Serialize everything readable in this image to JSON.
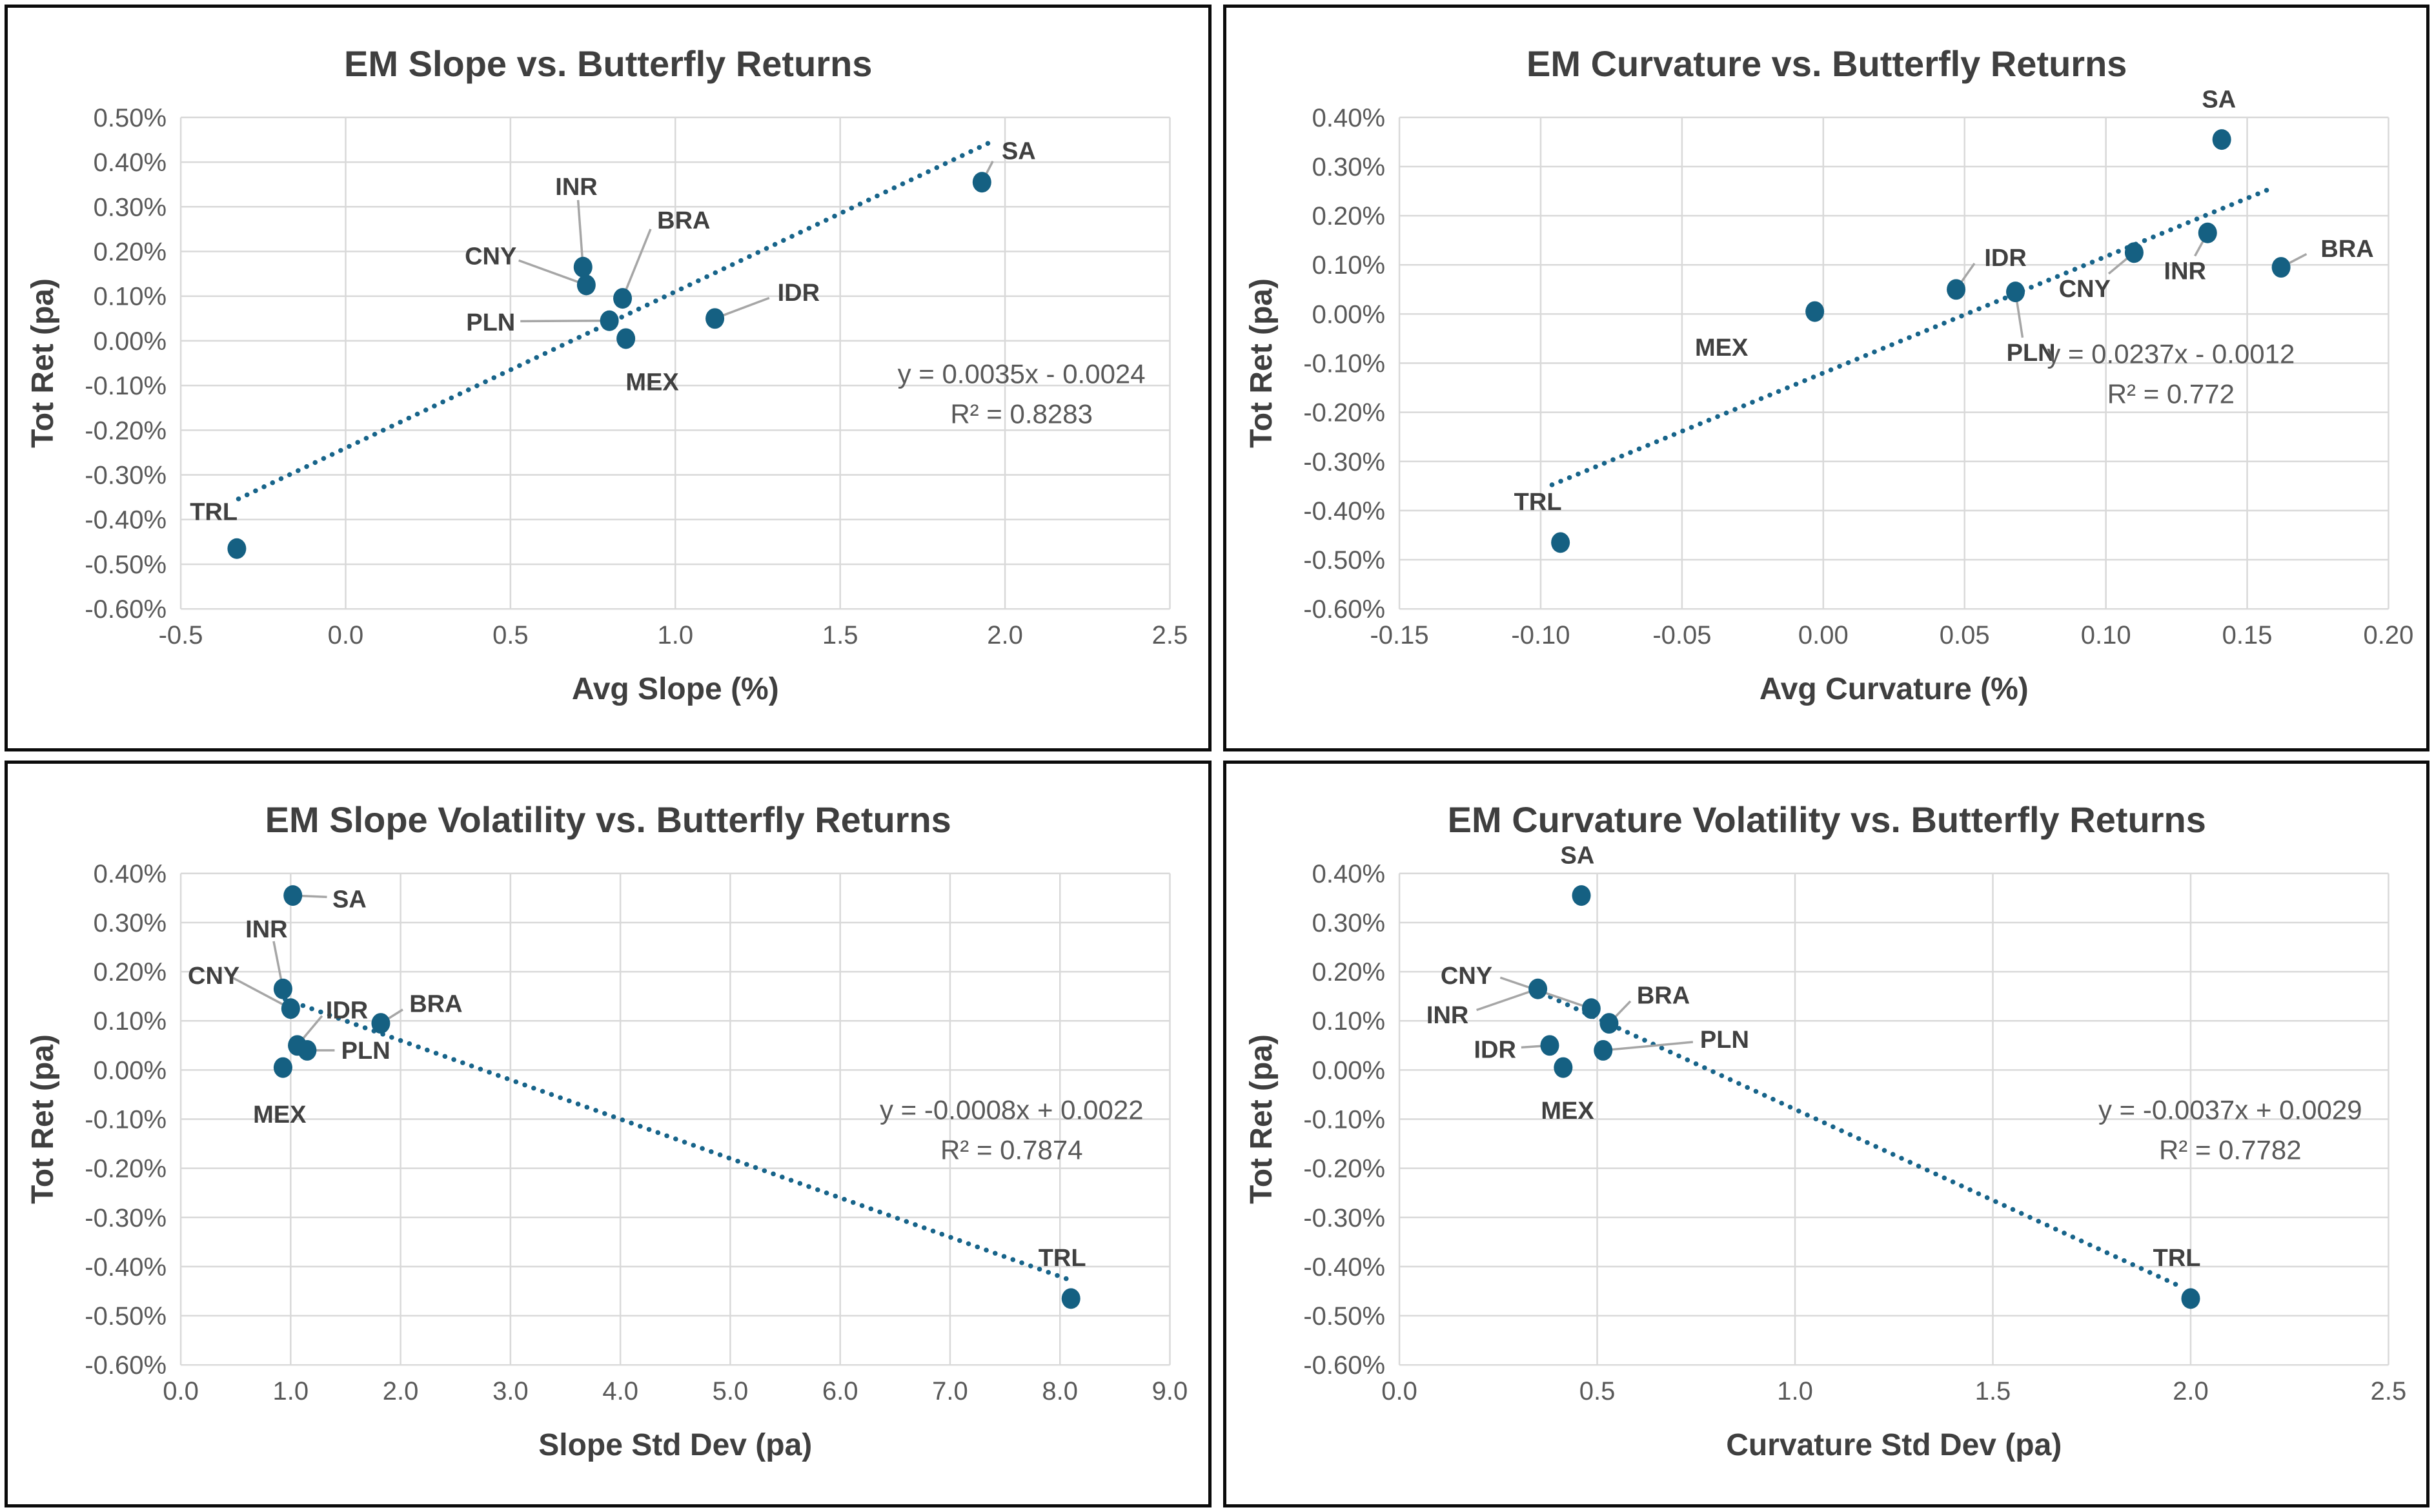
{
  "page": {
    "background": "#ffffff",
    "panel_border_color": "#0b0b0b"
  },
  "styles": {
    "point_color": "#156082",
    "trend_color": "#17648a",
    "grid_color": "#d9d9d9",
    "leader_color": "#a6a6a6",
    "title_color": "#3f3f3f",
    "tick_color": "#595959",
    "label_color": "#404040",
    "eq_color": "#595959"
  },
  "chart_data": [
    {
      "type": "scatter",
      "title": "EM Slope vs. Butterfly Returns",
      "xlabel": "Avg Slope (%)",
      "ylabel": "Tot Ret (pa)",
      "xlim": [
        -0.5,
        2.5
      ],
      "ylim": [
        -0.006,
        0.005
      ],
      "grid": true,
      "x_ticks": [
        {
          "v": -0.5,
          "t": "-0.5"
        },
        {
          "v": 0.0,
          "t": "0.0"
        },
        {
          "v": 0.5,
          "t": "0.5"
        },
        {
          "v": 1.0,
          "t": "1.0"
        },
        {
          "v": 1.5,
          "t": "1.5"
        },
        {
          "v": 2.0,
          "t": "2.0"
        },
        {
          "v": 2.5,
          "t": "2.5"
        }
      ],
      "y_ticks": [
        {
          "v": 0.005,
          "t": "0.50%"
        },
        {
          "v": 0.004,
          "t": "0.40%"
        },
        {
          "v": 0.003,
          "t": "0.30%"
        },
        {
          "v": 0.002,
          "t": "0.20%"
        },
        {
          "v": 0.001,
          "t": "0.10%"
        },
        {
          "v": 0.0,
          "t": "0.00%"
        },
        {
          "v": -0.001,
          "t": "-0.10%"
        },
        {
          "v": -0.002,
          "t": "-0.20%"
        },
        {
          "v": -0.003,
          "t": "-0.30%"
        },
        {
          "v": -0.004,
          "t": "-0.40%"
        },
        {
          "v": -0.005,
          "t": "-0.50%"
        },
        {
          "v": -0.006,
          "t": "-0.60%"
        }
      ],
      "points": [
        {
          "label": "SA",
          "x": 1.93,
          "y": 0.00355,
          "lx": 1.99,
          "ly": 0.00425,
          "anchor": "start",
          "leader": [
            1.963,
            0.00402
          ]
        },
        {
          "label": "INR",
          "x": 0.72,
          "y": 0.00165,
          "lx": 0.7,
          "ly": 0.00345,
          "anchor": "middle",
          "leader": [
            0.705,
            0.00315
          ]
        },
        {
          "label": "BRA",
          "x": 0.84,
          "y": 0.00095,
          "lx": 0.945,
          "ly": 0.0027,
          "anchor": "start",
          "leader": [
            0.925,
            0.0025
          ]
        },
        {
          "label": "CNY",
          "x": 0.73,
          "y": 0.00125,
          "lx": 0.44,
          "ly": 0.0019,
          "anchor": "middle",
          "leader": [
            0.525,
            0.0018
          ]
        },
        {
          "label": "PLN",
          "x": 0.8,
          "y": 0.00045,
          "lx": 0.44,
          "ly": 0.00042,
          "anchor": "middle",
          "leader": [
            0.53,
            0.00044
          ]
        },
        {
          "label": "MEX",
          "x": 0.85,
          "y": 5e-05,
          "lx": 0.93,
          "ly": -0.00092,
          "anchor": "middle",
          "leader": null
        },
        {
          "label": "IDR",
          "x": 1.12,
          "y": 0.0005,
          "lx": 1.31,
          "ly": 0.00108,
          "anchor": "start",
          "leader": [
            1.285,
            0.00096
          ]
        },
        {
          "label": "TRL",
          "x": -0.33,
          "y": -0.00465,
          "lx": -0.4,
          "ly": -0.00382,
          "anchor": "middle",
          "leader": null
        }
      ],
      "trend": {
        "slope": 0.0035,
        "intercept": -0.0024,
        "x1": -0.325,
        "x2": 1.972,
        "eq": "y = 0.0035x - 0.0024",
        "r2": "R² = 0.8283",
        "eq_fx": 0.85,
        "eq_fy": 0.541
      }
    },
    {
      "type": "scatter",
      "title": "EM Curvature vs. Butterfly Returns",
      "xlabel": "Avg Curvature (%)",
      "ylabel": "Tot Ret (pa)",
      "xlim": [
        -0.15,
        0.2
      ],
      "ylim": [
        -0.006,
        0.004
      ],
      "grid": true,
      "x_ticks": [
        {
          "v": -0.15,
          "t": "-0.15"
        },
        {
          "v": -0.1,
          "t": "-0.10"
        },
        {
          "v": -0.05,
          "t": "-0.05"
        },
        {
          "v": 0.0,
          "t": "0.00"
        },
        {
          "v": 0.05,
          "t": "0.05"
        },
        {
          "v": 0.1,
          "t": "0.10"
        },
        {
          "v": 0.15,
          "t": "0.15"
        },
        {
          "v": 0.2,
          "t": "0.20"
        }
      ],
      "y_ticks": [
        {
          "v": 0.004,
          "t": "0.40%"
        },
        {
          "v": 0.003,
          "t": "0.30%"
        },
        {
          "v": 0.002,
          "t": "0.20%"
        },
        {
          "v": 0.001,
          "t": "0.10%"
        },
        {
          "v": 0.0,
          "t": "0.00%"
        },
        {
          "v": -0.001,
          "t": "-0.10%"
        },
        {
          "v": -0.002,
          "t": "-0.20%"
        },
        {
          "v": -0.003,
          "t": "-0.30%"
        },
        {
          "v": -0.004,
          "t": "-0.40%"
        },
        {
          "v": -0.005,
          "t": "-0.50%"
        },
        {
          "v": -0.006,
          "t": "-0.60%"
        }
      ],
      "points": [
        {
          "label": "SA",
          "x": 0.141,
          "y": 0.00355,
          "lx": 0.14,
          "ly": 0.00437,
          "anchor": "middle",
          "leader": null
        },
        {
          "label": "BRA",
          "x": 0.162,
          "y": 0.00095,
          "lx": 0.176,
          "ly": 0.00133,
          "anchor": "start",
          "leader": [
            0.171,
            0.00122
          ]
        },
        {
          "label": "INR",
          "x": 0.136,
          "y": 0.00165,
          "lx": 0.128,
          "ly": 0.00088,
          "anchor": "middle",
          "leader": [
            0.1315,
            0.00118
          ]
        },
        {
          "label": "CNY",
          "x": 0.11,
          "y": 0.00125,
          "lx": 0.0925,
          "ly": 0.00052,
          "anchor": "middle",
          "leader": [
            0.101,
            0.00082
          ]
        },
        {
          "label": "IDR",
          "x": 0.047,
          "y": 0.0005,
          "lx": 0.057,
          "ly": 0.00115,
          "anchor": "start",
          "leader": [
            0.0535,
            0.00103
          ]
        },
        {
          "label": "PLN",
          "x": 0.068,
          "y": 0.00045,
          "lx": 0.0735,
          "ly": -0.00078,
          "anchor": "middle",
          "leader": [
            0.0705,
            -0.00048
          ]
        },
        {
          "label": "MEX",
          "x": -0.003,
          "y": 5e-05,
          "lx": -0.036,
          "ly": -0.00068,
          "anchor": "middle",
          "leader": null
        },
        {
          "label": "TRL",
          "x": -0.093,
          "y": -0.00465,
          "lx": -0.101,
          "ly": -0.00382,
          "anchor": "middle",
          "leader": null
        }
      ],
      "trend": {
        "slope": 0.0237,
        "intercept": -0.0012,
        "x1": -0.096,
        "x2": 0.159,
        "eq": "y = 0.0237x - 0.0012",
        "r2": "R² = 0.772",
        "eq_fx": 0.78,
        "eq_fy": 0.5
      }
    },
    {
      "type": "scatter",
      "title": "EM Slope Volatility vs. Butterfly Returns",
      "xlabel": "Slope Std Dev (pa)",
      "ylabel": "Tot Ret (pa)",
      "xlim": [
        0.0,
        9.0
      ],
      "ylim": [
        -0.006,
        0.004
      ],
      "grid": true,
      "x_ticks": [
        {
          "v": 0.0,
          "t": "0.0"
        },
        {
          "v": 1.0,
          "t": "1.0"
        },
        {
          "v": 2.0,
          "t": "2.0"
        },
        {
          "v": 3.0,
          "t": "3.0"
        },
        {
          "v": 4.0,
          "t": "4.0"
        },
        {
          "v": 5.0,
          "t": "5.0"
        },
        {
          "v": 6.0,
          "t": "6.0"
        },
        {
          "v": 7.0,
          "t": "7.0"
        },
        {
          "v": 8.0,
          "t": "8.0"
        },
        {
          "v": 9.0,
          "t": "9.0"
        }
      ],
      "y_ticks": [
        {
          "v": 0.004,
          "t": "0.40%"
        },
        {
          "v": 0.003,
          "t": "0.30%"
        },
        {
          "v": 0.002,
          "t": "0.20%"
        },
        {
          "v": 0.001,
          "t": "0.10%"
        },
        {
          "v": 0.0,
          "t": "0.00%"
        },
        {
          "v": -0.001,
          "t": "-0.10%"
        },
        {
          "v": -0.002,
          "t": "-0.20%"
        },
        {
          "v": -0.003,
          "t": "-0.30%"
        },
        {
          "v": -0.004,
          "t": "-0.40%"
        },
        {
          "v": -0.005,
          "t": "-0.50%"
        },
        {
          "v": -0.006,
          "t": "-0.60%"
        }
      ],
      "points": [
        {
          "label": "SA",
          "x": 1.02,
          "y": 0.00355,
          "lx": 1.38,
          "ly": 0.00348,
          "anchor": "start",
          "leader": [
            1.33,
            0.00352
          ]
        },
        {
          "label": "INR",
          "x": 0.93,
          "y": 0.00165,
          "lx": 0.78,
          "ly": 0.00287,
          "anchor": "middle",
          "leader": [
            0.845,
            0.00262
          ]
        },
        {
          "label": "CNY",
          "x": 1.0,
          "y": 0.00125,
          "lx": 0.3,
          "ly": 0.00192,
          "anchor": "middle",
          "leader": [
            0.47,
            0.00188
          ]
        },
        {
          "label": "IDR",
          "x": 1.06,
          "y": 0.0005,
          "lx": 1.32,
          "ly": 0.00122,
          "anchor": "start",
          "leader": [
            1.285,
            0.0011
          ]
        },
        {
          "label": "PLN",
          "x": 1.15,
          "y": 0.0004,
          "lx": 1.46,
          "ly": 0.0004,
          "anchor": "start",
          "leader": [
            1.4,
            0.0004
          ]
        },
        {
          "label": "MEX",
          "x": 0.93,
          "y": 5e-05,
          "lx": 0.9,
          "ly": -0.0009,
          "anchor": "middle",
          "leader": null
        },
        {
          "label": "BRA",
          "x": 1.82,
          "y": 0.00095,
          "lx": 2.08,
          "ly": 0.00135,
          "anchor": "start",
          "leader": [
            2.02,
            0.00123
          ]
        },
        {
          "label": "TRL",
          "x": 8.1,
          "y": -0.00465,
          "lx": 8.02,
          "ly": -0.00382,
          "anchor": "middle",
          "leader": null
        }
      ],
      "trend": {
        "slope": -0.0008,
        "intercept": 0.0022,
        "x1": 0.95,
        "x2": 8.12,
        "eq": "y = -0.0008x + 0.0022",
        "r2": "R² = 0.7874",
        "eq_fx": 0.84,
        "eq_fy": 0.5
      }
    },
    {
      "type": "scatter",
      "title": "EM Curvature Volatility vs. Butterfly Returns",
      "xlabel": "Curvature Std Dev (pa)",
      "ylabel": "Tot Ret (pa)",
      "xlim": [
        0.0,
        2.5
      ],
      "ylim": [
        -0.006,
        0.004
      ],
      "grid": true,
      "x_ticks": [
        {
          "v": 0.0,
          "t": "0.0"
        },
        {
          "v": 0.5,
          "t": "0.5"
        },
        {
          "v": 1.0,
          "t": "1.0"
        },
        {
          "v": 1.5,
          "t": "1.5"
        },
        {
          "v": 2.0,
          "t": "2.0"
        },
        {
          "v": 2.5,
          "t": "2.5"
        }
      ],
      "y_ticks": [
        {
          "v": 0.004,
          "t": "0.40%"
        },
        {
          "v": 0.003,
          "t": "0.30%"
        },
        {
          "v": 0.002,
          "t": "0.20%"
        },
        {
          "v": 0.001,
          "t": "0.10%"
        },
        {
          "v": 0.0,
          "t": "0.00%"
        },
        {
          "v": -0.001,
          "t": "-0.10%"
        },
        {
          "v": -0.002,
          "t": "-0.20%"
        },
        {
          "v": -0.003,
          "t": "-0.30%"
        },
        {
          "v": -0.004,
          "t": "-0.40%"
        },
        {
          "v": -0.005,
          "t": "-0.50%"
        },
        {
          "v": -0.006,
          "t": "-0.60%"
        }
      ],
      "points": [
        {
          "label": "SA",
          "x": 0.46,
          "y": 0.00355,
          "lx": 0.45,
          "ly": 0.00437,
          "anchor": "middle",
          "leader": null
        },
        {
          "label": "CNY",
          "x": 0.485,
          "y": 0.00125,
          "lx": 0.235,
          "ly": 0.00192,
          "anchor": "end",
          "leader": [
            0.255,
            0.00188
          ]
        },
        {
          "label": "INR",
          "x": 0.35,
          "y": 0.00165,
          "lx": 0.175,
          "ly": 0.00112,
          "anchor": "end",
          "leader": [
            0.195,
            0.00122
          ]
        },
        {
          "label": "BRA",
          "x": 0.53,
          "y": 0.00095,
          "lx": 0.6,
          "ly": 0.00152,
          "anchor": "start",
          "leader": [
            0.584,
            0.0014
          ]
        },
        {
          "label": "IDR",
          "x": 0.38,
          "y": 0.0005,
          "lx": 0.295,
          "ly": 0.00042,
          "anchor": "end",
          "leader": [
            0.308,
            0.00046
          ]
        },
        {
          "label": "PLN",
          "x": 0.515,
          "y": 0.0004,
          "lx": 0.76,
          "ly": 0.00062,
          "anchor": "start",
          "leader": [
            0.742,
            0.00057
          ]
        },
        {
          "label": "MEX",
          "x": 0.414,
          "y": 5e-05,
          "lx": 0.425,
          "ly": -0.00082,
          "anchor": "middle",
          "leader": null
        },
        {
          "label": "TRL",
          "x": 2.0,
          "y": -0.00465,
          "lx": 1.965,
          "ly": -0.00382,
          "anchor": "middle",
          "leader": null
        }
      ],
      "trend": {
        "slope": -0.0037,
        "intercept": 0.0029,
        "x1": 0.36,
        "x2": 1.975,
        "eq": "y = -0.0037x + 0.0029",
        "r2": "R² = 0.7782",
        "eq_fx": 0.84,
        "eq_fy": 0.5
      }
    }
  ]
}
